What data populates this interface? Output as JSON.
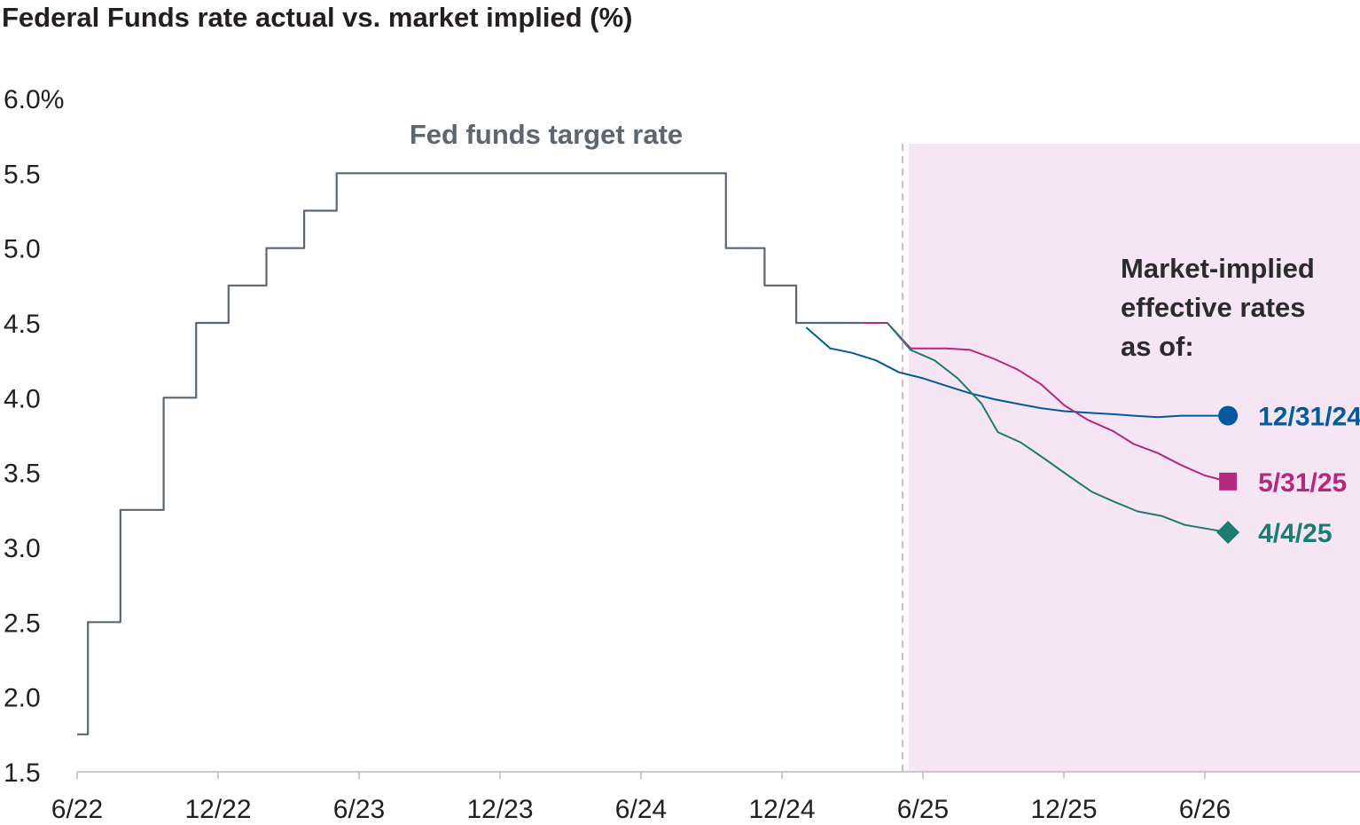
{
  "chart_data": {
    "type": "line",
    "title": "Federal Funds rate actual vs. market implied (%)",
    "xlabel": "",
    "ylabel": "",
    "x_ticks": [
      "6/22",
      "12/22",
      "6/23",
      "12/23",
      "6/24",
      "12/24",
      "6/25",
      "12/25",
      "6/26"
    ],
    "y_ticks": [
      "6.0%",
      "5.5",
      "5.0",
      "4.5",
      "4.0",
      "3.5",
      "3.0",
      "2.5",
      "2.0",
      "1.5"
    ],
    "ylim": [
      1.5,
      6.0
    ],
    "xlim": [
      "2022-06-01",
      "2026-12-31"
    ],
    "grid": false,
    "shaded_region": {
      "from": "2025-05-31",
      "to": "2026-12-31",
      "color": "#f6e6f5"
    },
    "annotations": {
      "target_label": "Fed funds target rate",
      "market_label_lines": [
        "Market-implied",
        "effective rates",
        "as of:"
      ]
    },
    "series": [
      {
        "name": "Fed funds target rate",
        "color": "#5b6670",
        "step": true,
        "points": [
          [
            "2022-06-01",
            1.75
          ],
          [
            "2022-06-15",
            1.75
          ],
          [
            "2022-06-15",
            2.5
          ],
          [
            "2022-07-27",
            2.5
          ],
          [
            "2022-07-27",
            3.25
          ],
          [
            "2022-09-21",
            3.25
          ],
          [
            "2022-09-21",
            4.0
          ],
          [
            "2022-11-02",
            4.0
          ],
          [
            "2022-11-02",
            4.5
          ],
          [
            "2022-12-14",
            4.5
          ],
          [
            "2022-12-14",
            4.75
          ],
          [
            "2023-02-01",
            4.75
          ],
          [
            "2023-02-01",
            5.0
          ],
          [
            "2023-03-22",
            5.0
          ],
          [
            "2023-03-22",
            5.25
          ],
          [
            "2023-05-03",
            5.25
          ],
          [
            "2023-05-03",
            5.5
          ],
          [
            "2024-09-18",
            5.5
          ],
          [
            "2024-09-18",
            5.0
          ],
          [
            "2024-11-07",
            5.0
          ],
          [
            "2024-11-07",
            4.75
          ],
          [
            "2024-12-18",
            4.75
          ],
          [
            "2024-12-18",
            4.5
          ],
          [
            "2025-03-15",
            4.5
          ]
        ]
      },
      {
        "name": "12/31/24",
        "color": "#005a9c",
        "marker": "circle",
        "points": [
          [
            "2024-12-31",
            4.47
          ],
          [
            "2025-01-31",
            4.33
          ],
          [
            "2025-02-28",
            4.3
          ],
          [
            "2025-03-31",
            4.25
          ],
          [
            "2025-04-30",
            4.17
          ],
          [
            "2025-05-31",
            4.13
          ],
          [
            "2025-06-30",
            4.08
          ],
          [
            "2025-07-31",
            4.03
          ],
          [
            "2025-08-31",
            3.99
          ],
          [
            "2025-09-30",
            3.96
          ],
          [
            "2025-10-31",
            3.93
          ],
          [
            "2025-11-30",
            3.91
          ],
          [
            "2025-12-31",
            3.9
          ],
          [
            "2026-01-31",
            3.89
          ],
          [
            "2026-02-28",
            3.88
          ],
          [
            "2026-03-31",
            3.87
          ],
          [
            "2026-04-30",
            3.88
          ],
          [
            "2026-05-31",
            3.88
          ],
          [
            "2026-06-30",
            3.88
          ]
        ]
      },
      {
        "name": "5/31/25",
        "color": "#b5287d",
        "marker": "square",
        "points": [
          [
            "2025-03-15",
            4.5
          ],
          [
            "2025-04-15",
            4.5
          ],
          [
            "2025-05-15",
            4.33
          ],
          [
            "2025-05-31",
            4.33
          ],
          [
            "2025-06-30",
            4.33
          ],
          [
            "2025-07-31",
            4.32
          ],
          [
            "2025-08-31",
            4.26
          ],
          [
            "2025-09-30",
            4.19
          ],
          [
            "2025-10-31",
            4.09
          ],
          [
            "2025-11-30",
            3.95
          ],
          [
            "2025-12-31",
            3.85
          ],
          [
            "2026-01-31",
            3.78
          ],
          [
            "2026-02-28",
            3.69
          ],
          [
            "2026-03-31",
            3.63
          ],
          [
            "2026-04-30",
            3.55
          ],
          [
            "2026-05-31",
            3.48
          ],
          [
            "2026-06-30",
            3.44
          ]
        ]
      },
      {
        "name": "4/4/25",
        "color": "#1e7b73",
        "marker": "diamond",
        "points": [
          [
            "2025-04-15",
            4.5
          ],
          [
            "2025-05-15",
            4.32
          ],
          [
            "2025-06-15",
            4.25
          ],
          [
            "2025-07-15",
            4.13
          ],
          [
            "2025-08-15",
            3.96
          ],
          [
            "2025-09-05",
            3.77
          ],
          [
            "2025-10-05",
            3.7
          ],
          [
            "2025-11-05",
            3.59
          ],
          [
            "2025-12-05",
            3.48
          ],
          [
            "2026-01-05",
            3.37
          ],
          [
            "2026-02-05",
            3.3
          ],
          [
            "2026-03-05",
            3.24
          ],
          [
            "2026-04-05",
            3.21
          ],
          [
            "2026-05-05",
            3.15
          ],
          [
            "2026-06-30",
            3.1
          ]
        ]
      }
    ]
  }
}
